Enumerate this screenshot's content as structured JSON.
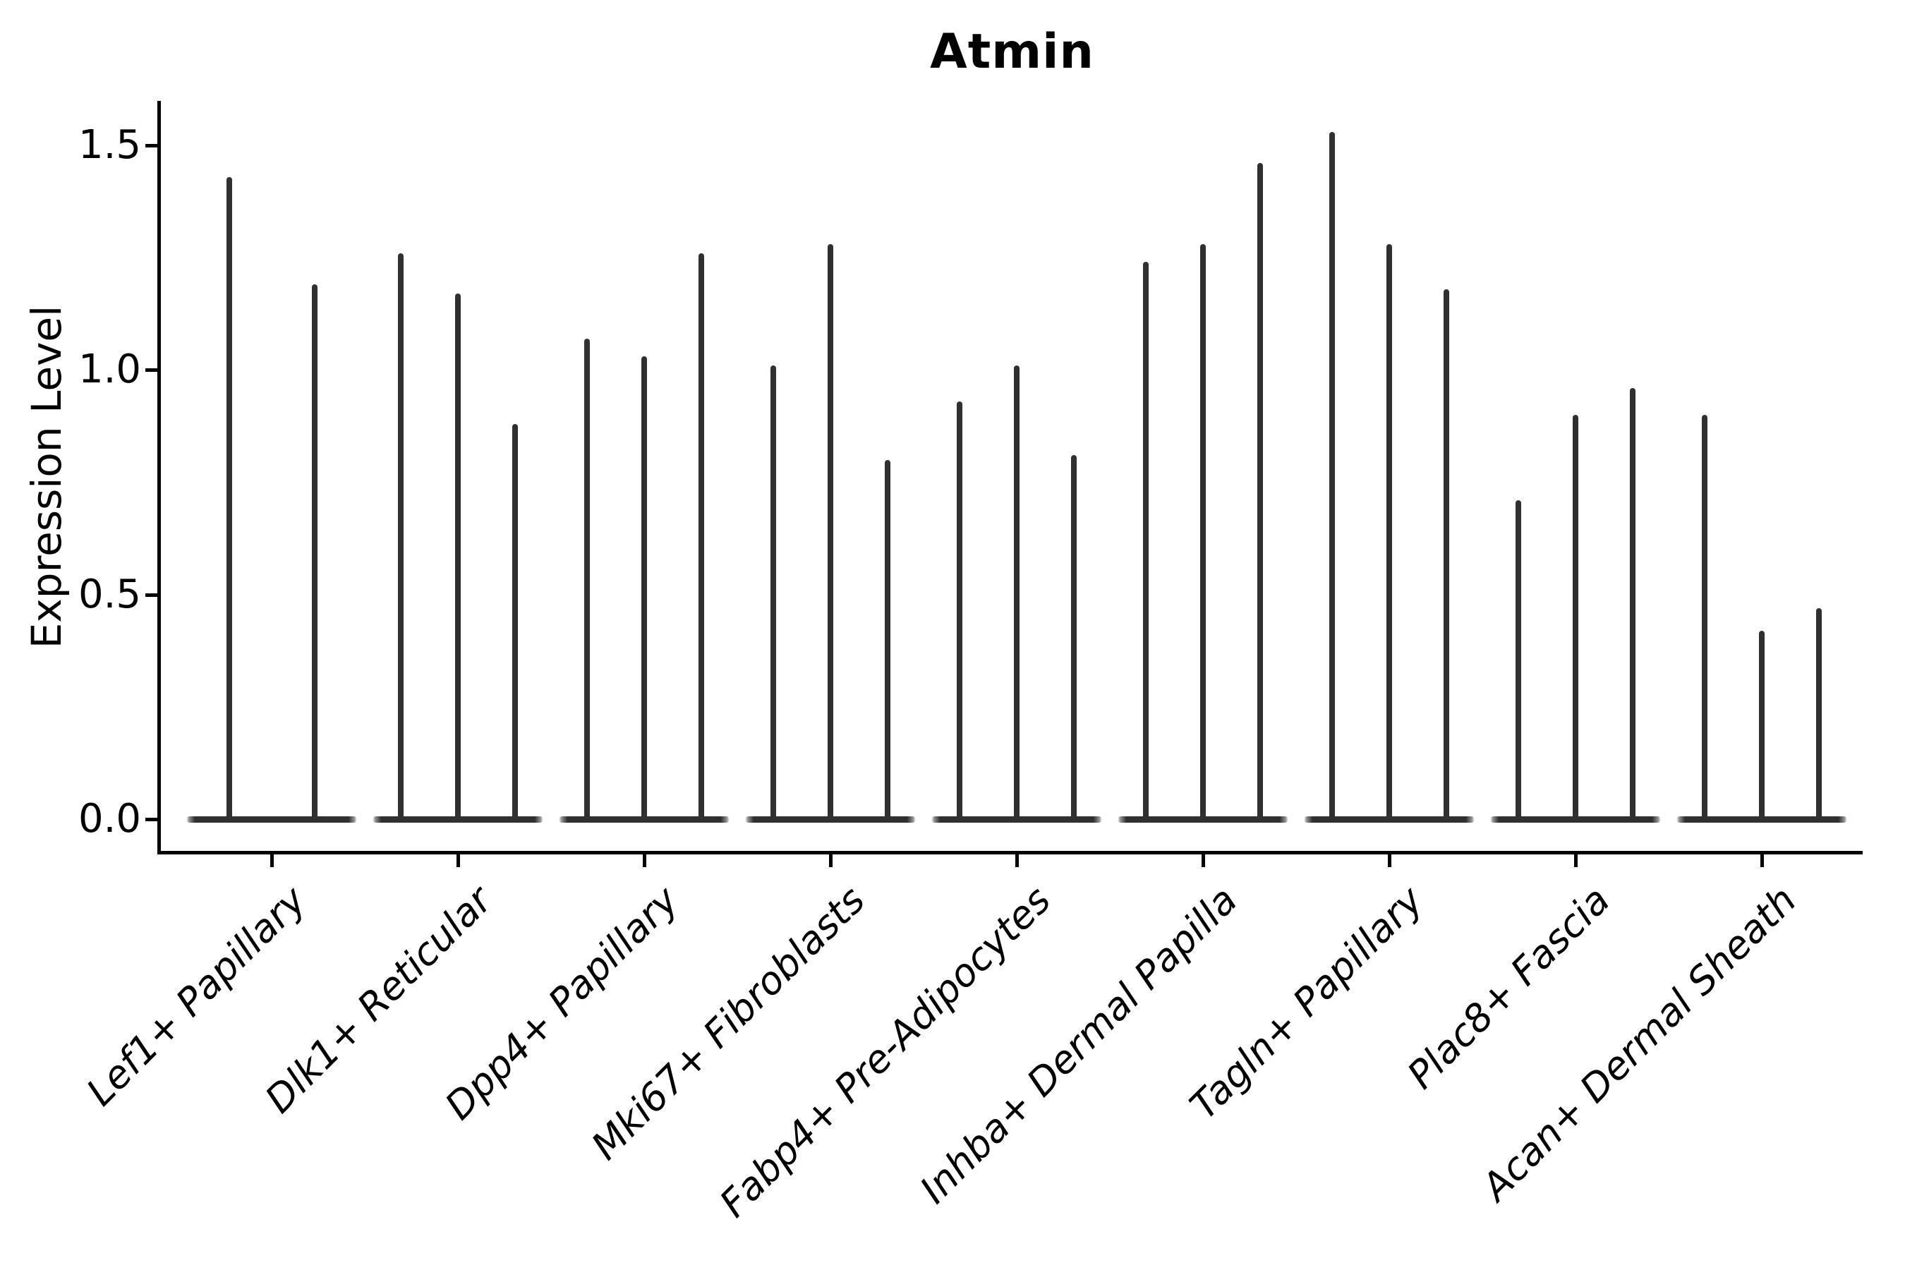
{
  "title": "Atmin",
  "y_axis": {
    "label": "Expression Level",
    "tick_labels": [
      "0.0",
      "0.5",
      "1.0",
      "1.5"
    ]
  },
  "chart_data": {
    "type": "violin",
    "title": "Atmin",
    "xlabel": "",
    "ylabel": "Expression Level",
    "ylim": [
      -0.07,
      1.6
    ],
    "yticks": [
      0.0,
      0.5,
      1.0,
      1.5
    ],
    "grid": false,
    "legend_position": "none",
    "violin_color": "#303030",
    "axis_color": "#000000",
    "categories": [
      "Lef1+ Papillary",
      "Dlk1+ Reticular",
      "Dpp4+ Papillary",
      "Mki67+ Fibroblasts",
      "Fabp4+ Pre-Adipocytes",
      "Inhba+ Dermal Papilla",
      "Tagln+ Papillary",
      "Plac8+ Fascia",
      "Acan+ Dermal Sheath"
    ],
    "groups": [
      {
        "category": "Lef1+ Papillary",
        "violin_maxima": [
          1.43,
          1.19
        ]
      },
      {
        "category": "Dlk1+ Reticular",
        "violin_maxima": [
          1.26,
          1.17,
          0.88
        ]
      },
      {
        "category": "Dpp4+ Papillary",
        "violin_maxima": [
          1.07,
          1.03,
          1.26
        ]
      },
      {
        "category": "Mki67+ Fibroblasts",
        "violin_maxima": [
          1.01,
          1.28,
          0.8
        ]
      },
      {
        "category": "Fabp4+ Pre-Adipocytes",
        "violin_maxima": [
          0.93,
          1.01,
          0.81
        ]
      },
      {
        "category": "Inhba+ Dermal Papilla",
        "violin_maxima": [
          1.24,
          1.28,
          1.46
        ]
      },
      {
        "category": "Tagln+ Papillary",
        "violin_maxima": [
          1.53,
          1.28,
          1.18
        ]
      },
      {
        "category": "Plac8+ Fascia",
        "violin_maxima": [
          0.71,
          0.9,
          0.96
        ]
      },
      {
        "category": "Acan+ Dermal Sheath",
        "violin_maxima": [
          0.9,
          0.42,
          0.47
        ]
      }
    ],
    "description": "Each violin is a near-zero-width spike: a flat dense base at expression 0 with a thin tail rising to the listed maximum expression value."
  }
}
